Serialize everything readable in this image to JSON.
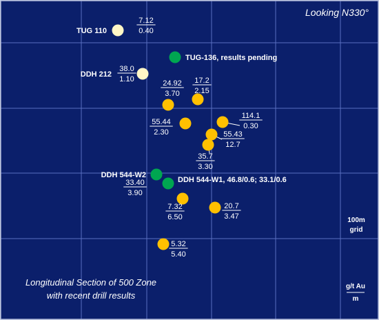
{
  "view_label": "Looking  N330°",
  "title_lines": [
    "Longitudinal Section  of 500 Zone",
    "with recent drill results"
  ],
  "grid_label": [
    "100m",
    "grid"
  ],
  "units": {
    "top": "g/t Au",
    "bottom": "m"
  },
  "colors": {
    "background": "#0b1f6b",
    "grid": "#5a6fc0",
    "border": "#a9b3d6",
    "text": "#ffffff",
    "hole_pale": "#fff6c6",
    "hole_result": "#ffc000",
    "hole_pending": "#00a651"
  },
  "holes": [
    {
      "id": "tug110",
      "kind": "pale",
      "name": "TUG 110",
      "grade": "7.12",
      "width": "0.40"
    },
    {
      "id": "tug136",
      "kind": "pending",
      "name": "TUG-136, results pending"
    },
    {
      "id": "ddh212",
      "kind": "pale",
      "name": "DDH 212",
      "grade": "38.0",
      "width": "1.10"
    },
    {
      "id": "h2492",
      "kind": "result",
      "grade": "24.92",
      "width": "3.70"
    },
    {
      "id": "h172",
      "kind": "result",
      "grade": "17.2",
      "width": "2.15"
    },
    {
      "id": "h5544",
      "kind": "result",
      "grade": "55.44",
      "width": "2.30"
    },
    {
      "id": "h1141",
      "kind": "result",
      "grade": "114.1",
      "width": "0.30"
    },
    {
      "id": "h5543",
      "kind": "result",
      "grade": "55.43",
      "width": "12.7"
    },
    {
      "id": "h357",
      "kind": "result",
      "grade": "35.7",
      "width": "3.30"
    },
    {
      "id": "ddh544w2",
      "kind": "pending",
      "name": "DDH 544-W2",
      "grade": "33.40",
      "width": "3.90"
    },
    {
      "id": "ddh544w1",
      "kind": "pending",
      "name": "DDH 544-W1, 46.8/0.6; 33.1/0.6"
    },
    {
      "id": "h732",
      "kind": "result",
      "grade": "7.32",
      "width": "6.50"
    },
    {
      "id": "h207",
      "kind": "result",
      "grade": "20.7",
      "width": "3.47"
    },
    {
      "id": "h532",
      "kind": "result",
      "grade": "5.32",
      "width": "5.40"
    }
  ]
}
